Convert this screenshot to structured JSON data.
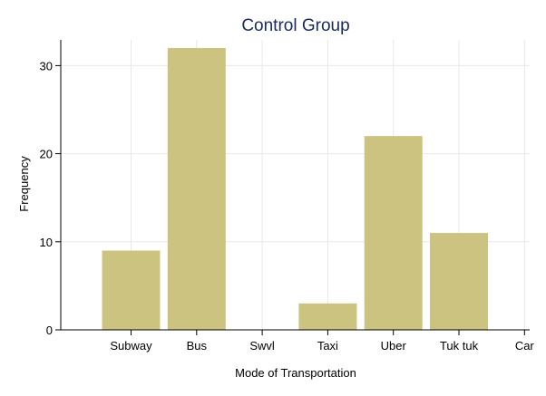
{
  "chart_data": {
    "type": "bar",
    "title": "Control Group",
    "xlabel": "Mode of Transportation",
    "ylabel": "Frequency",
    "categories": [
      "Subway",
      "Bus",
      "Swvl",
      "Taxi",
      "Uber",
      "Tuk tuk",
      "Car"
    ],
    "values": [
      9,
      32,
      0,
      3,
      22,
      11,
      0
    ],
    "ylim": [
      0,
      33
    ],
    "yticks": [
      0,
      10,
      20,
      30
    ],
    "grid": true,
    "bar_color": "#cdc381",
    "title_color": "#1a2a5a",
    "grid_color": "#e8e8e8"
  }
}
